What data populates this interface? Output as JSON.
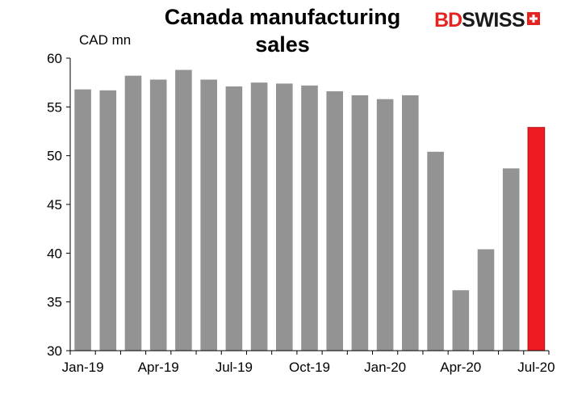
{
  "chart_data": {
    "type": "bar",
    "title": "Canada manufacturing\nsales",
    "ylabel": "CAD mn",
    "xlabel": "",
    "categories": [
      "Jan-19",
      "Feb-19",
      "Mar-19",
      "Apr-19",
      "May-19",
      "Jun-19",
      "Jul-19",
      "Aug-19",
      "Sep-19",
      "Oct-19",
      "Nov-19",
      "Dec-19",
      "Jan-20",
      "Feb-20",
      "Mar-20",
      "Apr-20",
      "May-20",
      "Jun-20",
      "Jul-20"
    ],
    "x_tick_labels": [
      "Jan-19",
      "Apr-19",
      "Jul-19",
      "Oct-19",
      "Jan-20",
      "Apr-20",
      "Jul-20"
    ],
    "values": [
      56.8,
      56.7,
      58.2,
      57.8,
      58.8,
      57.8,
      57.1,
      57.5,
      57.4,
      57.2,
      56.6,
      56.2,
      55.8,
      56.2,
      50.4,
      36.2,
      40.4,
      48.7,
      52.9
    ],
    "ylim": [
      30,
      60
    ],
    "yticks": [
      30,
      35,
      40,
      45,
      50,
      55,
      60
    ],
    "grid": false,
    "legend": "none",
    "colors": {
      "default": "#939393",
      "highlight": "#ed1c24"
    },
    "highlight_index": 18
  },
  "logo": {
    "part1": "BD",
    "part2": "SWISS"
  }
}
